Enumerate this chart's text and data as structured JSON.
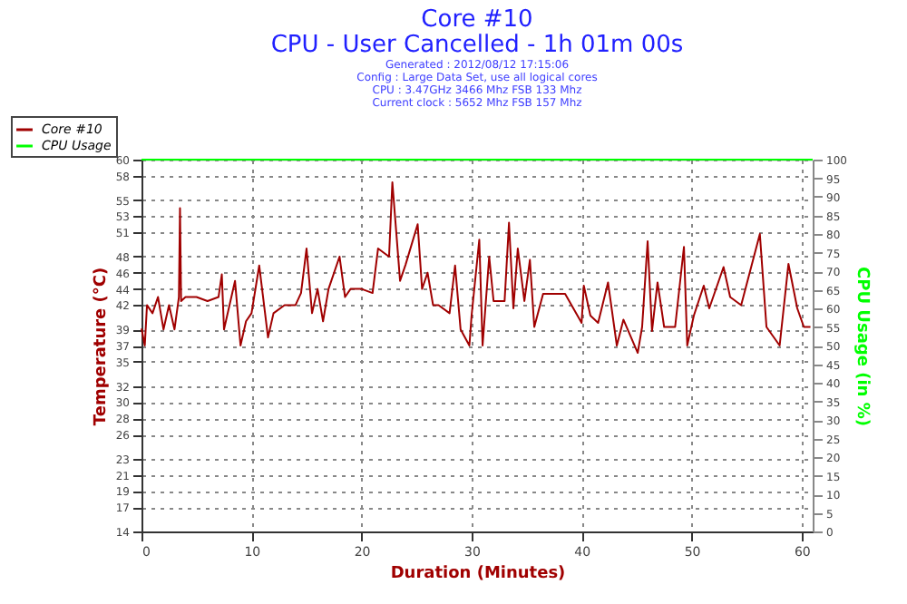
{
  "chart_data": {
    "type": "line",
    "title": "Core #10",
    "subtitle": "CPU - User Cancelled - 1h 01m 00s",
    "annotations": [
      "Generated : 2012/08/12 17:15:06",
      "Config : Large Data Set, use all logical cores",
      "CPU : 3.47GHz 3466 Mhz FSB 133 Mhz",
      "Current clock : 5652 Mhz FSB 157 Mhz"
    ],
    "xlabel": "Duration (Minutes)",
    "ylabel": "Temperature (°C)",
    "y2label": "CPU Usage (in %)",
    "xlim": [
      0,
      61
    ],
    "xticks": [
      0,
      10,
      20,
      30,
      40,
      50,
      60
    ],
    "ylim": [
      14,
      60
    ],
    "yticks": [
      14,
      17,
      19,
      21,
      23,
      26,
      28,
      30,
      32,
      35,
      37,
      39,
      42,
      44,
      46,
      48,
      51,
      53,
      55,
      58,
      60
    ],
    "y2lim": [
      0,
      100
    ],
    "y2ticks": [
      0,
      5,
      10,
      15,
      20,
      25,
      30,
      35,
      40,
      45,
      50,
      55,
      60,
      65,
      70,
      75,
      80,
      85,
      90,
      95,
      100
    ],
    "grid": true,
    "legend": "top left",
    "line_style": "solid",
    "marker": "none",
    "series": [
      {
        "name": "Core #10",
        "color": "#a00000",
        "x": [
          0,
          0.3,
          0.5,
          1,
          1.5,
          2,
          2.5,
          3,
          3.4,
          3.5,
          3.6,
          4,
          5,
          6,
          7,
          7.3,
          7.5,
          8,
          8.5,
          9,
          9.5,
          10,
          10.7,
          11.5,
          12,
          13,
          14,
          14.5,
          15,
          15.5,
          16,
          16.5,
          17,
          18,
          18.5,
          19,
          20,
          21,
          21.5,
          22.5,
          22.8,
          23.5,
          24,
          25.1,
          25.5,
          26,
          26.5,
          27,
          28,
          28.5,
          29,
          29.8,
          30,
          30.7,
          31,
          31.6,
          32,
          33,
          33.4,
          33.8,
          34.2,
          34.8,
          35.3,
          35.7,
          36.5,
          37.5,
          38.5,
          40,
          40.2,
          40.8,
          41.5,
          42.4,
          43.2,
          43.8,
          45.1,
          45.5,
          46,
          46.4,
          46.9,
          47.5,
          48.5,
          49.3,
          49.6,
          50.2,
          51.1,
          51.6,
          52.9,
          53.5,
          54.5,
          56.2,
          56.8,
          58,
          58.8,
          59.6,
          60.2,
          60.8
        ],
        "values": [
          39.1,
          37,
          42,
          41,
          43,
          39,
          42,
          39,
          43,
          54,
          42.5,
          43,
          43,
          42.5,
          43,
          45.8,
          39,
          42,
          45,
          37,
          40,
          41,
          46.9,
          38,
          41,
          42,
          42,
          43.5,
          49,
          41,
          44,
          40,
          44,
          48,
          43,
          44,
          44,
          43.5,
          49,
          48,
          57.2,
          45,
          47,
          52,
          44,
          46,
          42,
          42,
          41,
          46.9,
          39,
          37,
          40.7,
          50.1,
          37,
          48,
          42.5,
          42.5,
          52.2,
          41.6,
          49,
          42.5,
          47.6,
          39.3,
          43.4,
          43.4,
          43.4,
          39.8,
          44.4,
          40.7,
          39.8,
          44.8,
          37,
          40.2,
          36.1,
          39.3,
          49.9,
          38.8,
          44.8,
          39.3,
          39.3,
          49.2,
          37,
          40.7,
          44.4,
          41.6,
          46.7,
          43,
          42,
          50.8,
          39.3,
          37,
          47.1,
          41.6,
          39.3,
          39.3
        ]
      },
      {
        "name": "CPU Usage",
        "color": "#00ff00",
        "axis": "y2",
        "x": [
          0,
          61
        ],
        "values": [
          100,
          100
        ]
      }
    ]
  }
}
